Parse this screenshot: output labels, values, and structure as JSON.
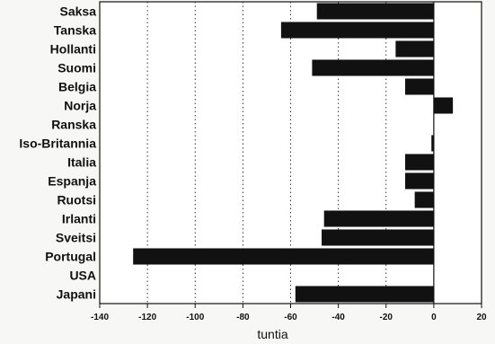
{
  "chart_data": {
    "type": "bar",
    "orientation": "horizontal",
    "categories": [
      "Saksa",
      "Tanska",
      "Hollanti",
      "Suomi",
      "Belgia",
      "Norja",
      "Ranska",
      "Iso-Britannia",
      "Italia",
      "Espanja",
      "Ruotsi",
      "Irlanti",
      "Sveitsi",
      "Portugal",
      "USA",
      "Japani"
    ],
    "values": [
      -49,
      -64,
      -16,
      -51,
      -12,
      8,
      0,
      -1,
      -12,
      -12,
      -8,
      -46,
      -47,
      -126,
      0,
      -58
    ],
    "title": "",
    "xlabel": "tuntia",
    "ylabel": "",
    "xlim": [
      -140,
      20
    ],
    "xticks": [
      -140,
      -120,
      -100,
      -80,
      -60,
      -40,
      -20,
      0,
      20
    ],
    "grid": "dotted vertical lines at major x ticks",
    "legend": "none",
    "bar_color": "#111111"
  }
}
